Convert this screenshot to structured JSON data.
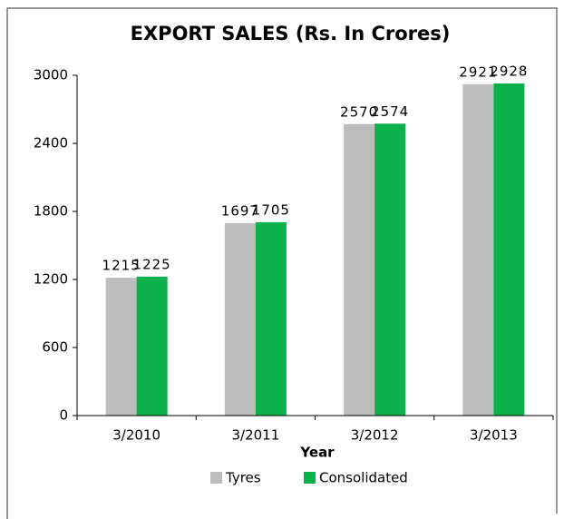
{
  "chart_data": {
    "type": "bar",
    "title": "EXPORT SALES (Rs. In Crores)",
    "x_label": "Year",
    "categories": [
      "3/2010",
      "3/2011",
      "3/2012",
      "3/2013"
    ],
    "series": [
      {
        "name": "Tyres",
        "color": "#bdbdbd",
        "values": [
          1215,
          1697,
          2570,
          2921
        ]
      },
      {
        "name": "Consolidated",
        "color": "#0db14b",
        "values": [
          1225,
          1705,
          2574,
          2928
        ]
      }
    ],
    "ylim": [
      0,
      3000
    ],
    "yticks": [
      0,
      600,
      1200,
      1800,
      2400,
      3000
    ],
    "legend": "bottom"
  }
}
